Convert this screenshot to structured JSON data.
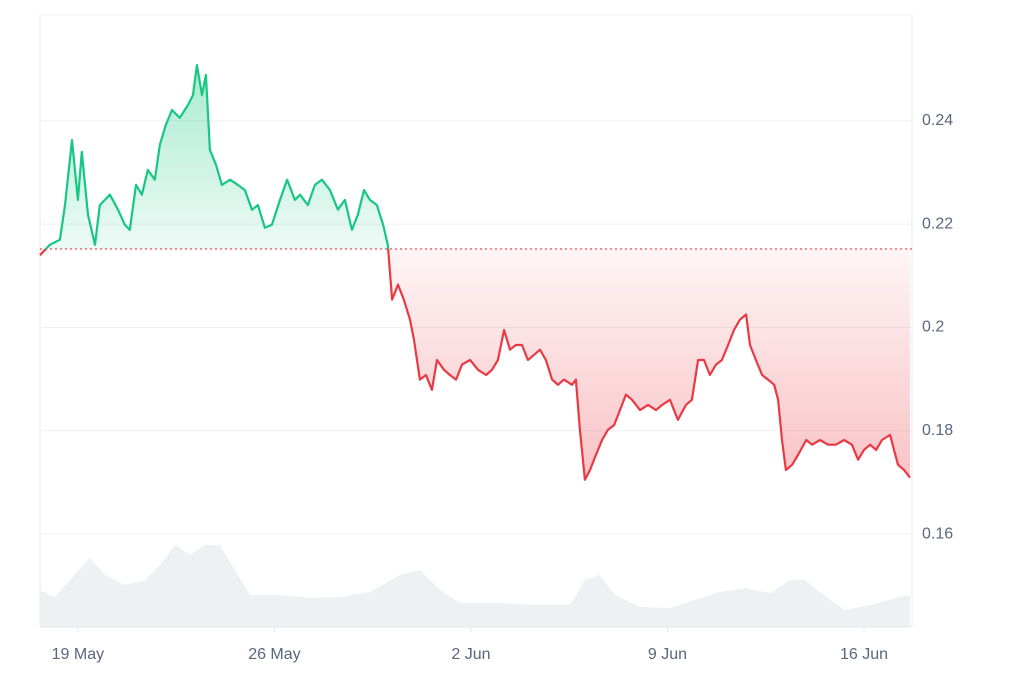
{
  "chart_data": {
    "type": "line",
    "xlim": [
      -1.35,
      29.71
    ],
    "xticks": [
      {
        "value": 0,
        "label": "19 May"
      },
      {
        "value": 7,
        "label": "26 May"
      },
      {
        "value": 14,
        "label": "2 Jun"
      },
      {
        "value": 21,
        "label": "9 Jun"
      },
      {
        "value": 28,
        "label": "16 Jun"
      }
    ],
    "ylim": [
      0.142,
      0.2605
    ],
    "yticks": [
      0.16,
      0.18,
      0.2,
      0.22,
      0.24
    ],
    "grid": true,
    "baseline": 0.2152,
    "x": [
      -1.35,
      -1.0,
      -0.64,
      -0.46,
      -0.21,
      0,
      0.14,
      0.36,
      0.61,
      0.78,
      1.14,
      1.43,
      1.67,
      1.85,
      2.07,
      2.28,
      2.49,
      2.74,
      2.92,
      3.13,
      3.35,
      3.63,
      3.92,
      4.1,
      4.24,
      4.42,
      4.56,
      4.7,
      4.92,
      5.13,
      5.42,
      5.7,
      5.95,
      6.2,
      6.41,
      6.66,
      6.91,
      7.2,
      7.45,
      7.73,
      7.91,
      8.19,
      8.44,
      8.69,
      8.98,
      9.26,
      9.51,
      9.76,
      9.97,
      10.19,
      10.4,
      10.65,
      10.87,
      11.04,
      11.19,
      11.4,
      11.61,
      11.83,
      11.97,
      12.18,
      12.4,
      12.61,
      12.79,
      13.04,
      13.25,
      13.47,
      13.68,
      13.97,
      14.25,
      14.54,
      14.75,
      14.96,
      15.18,
      15.39,
      15.6,
      15.82,
      16.03,
      16.25,
      16.46,
      16.67,
      16.89,
      17.1,
      17.31,
      17.6,
      17.74,
      17.88,
      18.06,
      18.24,
      18.45,
      18.67,
      18.88,
      19.1,
      19.31,
      19.52,
      19.74,
      20.02,
      20.31,
      20.59,
      20.81,
      21.09,
      21.37,
      21.66,
      21.87,
      22.09,
      22.3,
      22.51,
      22.73,
      22.94,
      23.16,
      23.37,
      23.58,
      23.8,
      23.94,
      24.15,
      24.37,
      24.58,
      24.8,
      24.94,
      25.08,
      25.22,
      25.44,
      25.65,
      25.94,
      26.15,
      26.43,
      26.72,
      27.0,
      27.29,
      27.57,
      27.79,
      28.0,
      28.22,
      28.43,
      28.64,
      28.93,
      29.07,
      29.21,
      29.43,
      29.64
    ],
    "series": [
      {
        "color": "#16c784",
        "color_below": "#ea3943",
        "values": [
          0.214,
          0.216,
          0.217,
          0.2237,
          0.2363,
          0.2247,
          0.234,
          0.2218,
          0.216,
          0.2237,
          0.2257,
          0.2228,
          0.2199,
          0.2189,
          0.2276,
          0.2257,
          0.2305,
          0.2286,
          0.2354,
          0.2392,
          0.2421,
          0.2406,
          0.2431,
          0.245,
          0.2508,
          0.245,
          0.2489,
          0.2344,
          0.2315,
          0.2276,
          0.2286,
          0.2276,
          0.2266,
          0.2228,
          0.2237,
          0.2193,
          0.2199,
          0.2247,
          0.2286,
          0.2247,
          0.2257,
          0.2237,
          0.2276,
          0.2286,
          0.2266,
          0.2228,
          0.2247,
          0.2189,
          0.2218,
          0.2266,
          0.2247,
          0.2237,
          0.2199,
          0.216,
          0.2054,
          0.2083,
          0.2054,
          0.2015,
          0.1976,
          0.1899,
          0.1908,
          0.1879,
          0.1937,
          0.1918,
          0.1908,
          0.1899,
          0.1928,
          0.1937,
          0.1918,
          0.1908,
          0.1918,
          0.1937,
          0.1995,
          0.1957,
          0.1966,
          0.1966,
          0.1937,
          0.1947,
          0.1957,
          0.1937,
          0.1899,
          0.1889,
          0.1899,
          0.1889,
          0.1899,
          0.1802,
          0.1705,
          0.1724,
          0.1753,
          0.1782,
          0.1802,
          0.1811,
          0.184,
          0.187,
          0.186,
          0.184,
          0.185,
          0.184,
          0.185,
          0.186,
          0.1821,
          0.185,
          0.186,
          0.1937,
          0.1937,
          0.1908,
          0.1928,
          0.1937,
          0.1966,
          0.1995,
          0.2015,
          0.2025,
          0.1966,
          0.1937,
          0.1908,
          0.1899,
          0.1889,
          0.186,
          0.1782,
          0.1724,
          0.1734,
          0.1753,
          0.1782,
          0.1773,
          0.1782,
          0.1773,
          0.1773,
          0.1782,
          0.1773,
          0.1744,
          0.1763,
          0.1773,
          0.1763,
          0.1782,
          0.1792,
          0.1763,
          0.1734,
          0.1724,
          0.1709
        ]
      }
    ],
    "volume": {
      "color": "#eef1f4",
      "lim": [
        0,
        100
      ],
      "x": [
        -1.35,
        -0.82,
        -0.29,
        0.43,
        0.96,
        1.67,
        2.39,
        2.92,
        3.46,
        3.99,
        4.52,
        5.06,
        5.59,
        6.13,
        7.2,
        8.27,
        9.33,
        10.4,
        11.47,
        12.18,
        12.9,
        13.61,
        15.03,
        16.46,
        17.53,
        18.06,
        18.6,
        19.13,
        20.02,
        21.09,
        22.16,
        22.87,
        23.76,
        24.65,
        25.37,
        25.9,
        26.43,
        27.32,
        28.22,
        29.11,
        29.64
      ],
      "values": [
        37,
        30,
        47,
        69,
        52,
        42,
        47,
        62,
        82,
        72,
        82,
        82,
        57,
        32,
        32,
        29,
        30,
        35,
        52,
        57,
        37,
        24,
        24,
        22,
        22,
        47,
        52,
        32,
        20,
        19,
        29,
        35,
        39,
        34,
        47,
        47,
        35,
        17,
        22,
        29,
        32
      ]
    }
  }
}
